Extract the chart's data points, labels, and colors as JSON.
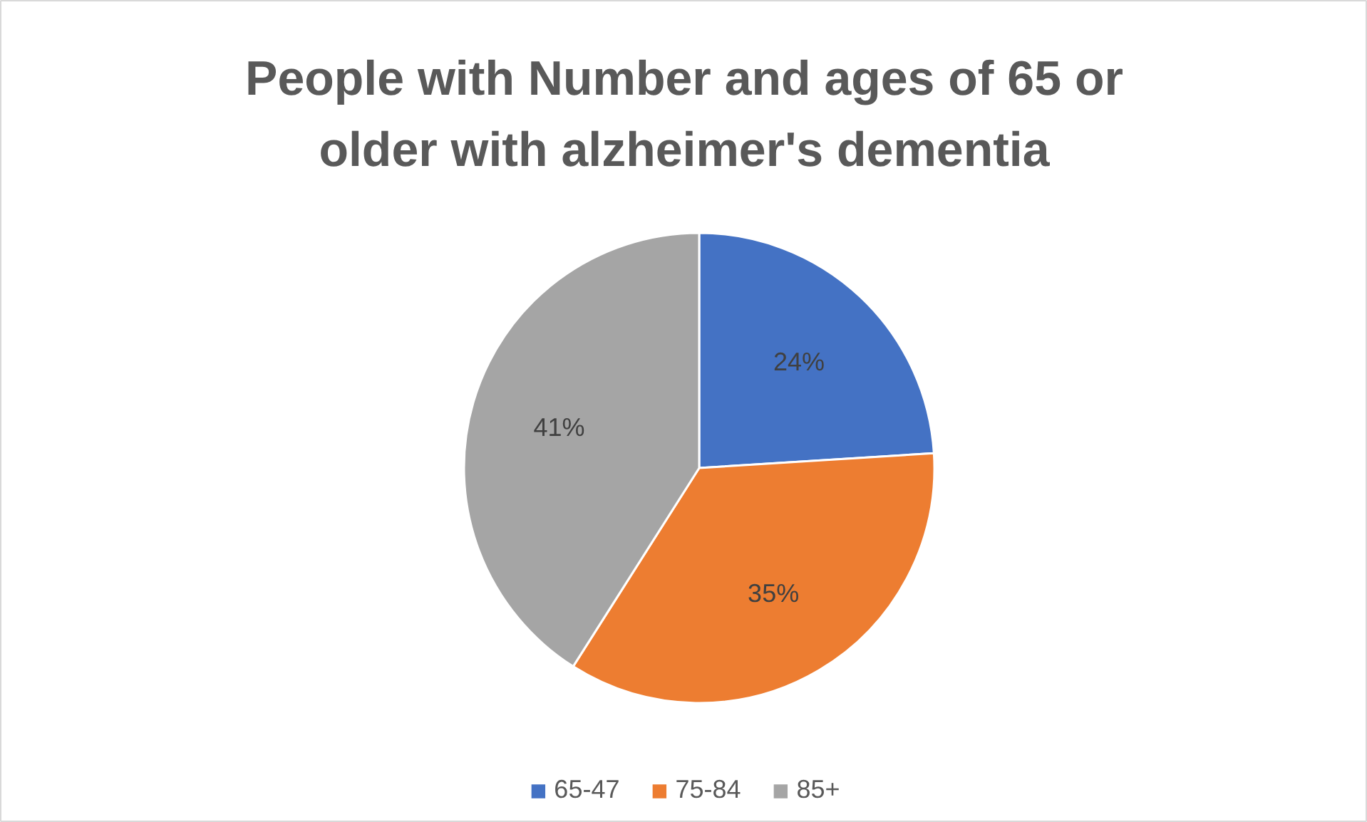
{
  "chart_data": {
    "type": "pie",
    "title": "People with Number and ages of 65 or\nolder with alzheimer's dementia",
    "categories": [
      "65-47",
      "75-84",
      "85+"
    ],
    "values": [
      24,
      35,
      41
    ],
    "colors": [
      "#4472c4",
      "#ed7d31",
      "#a5a5a5"
    ],
    "value_labels": [
      "24%",
      "35%",
      "41%"
    ],
    "legend": "bottom"
  }
}
